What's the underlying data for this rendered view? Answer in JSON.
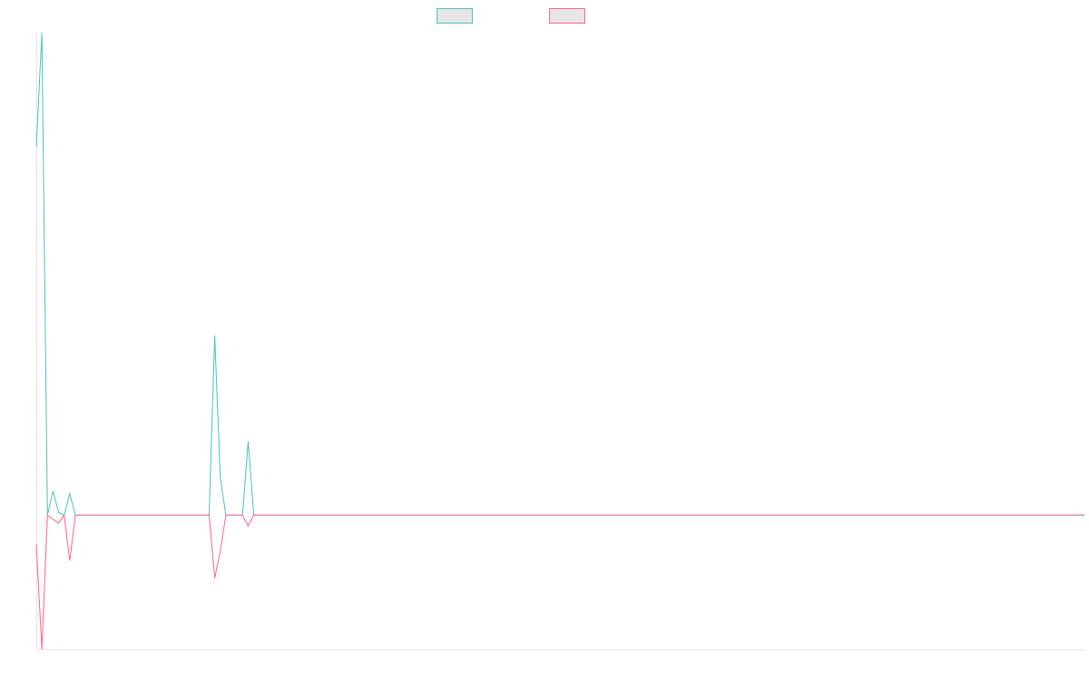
{
  "chart_data": {
    "type": "line",
    "series": [
      {
        "color": "#4bc0c0",
        "values": [
          2.75,
          3.6,
          0,
          0.18,
          0.02,
          0,
          0.16,
          0,
          0,
          0,
          0,
          0,
          0,
          0,
          0,
          0,
          0,
          0,
          0,
          0,
          0,
          0,
          0,
          0,
          0,
          0,
          0,
          0,
          0,
          0,
          0,
          0,
          1.34,
          0.28,
          0,
          0,
          0,
          0,
          0.55,
          0,
          0,
          0,
          0,
          0,
          0,
          0,
          0,
          0,
          0,
          0,
          0,
          0,
          0,
          0,
          0,
          0,
          0,
          0,
          0,
          0,
          0,
          0,
          0,
          0,
          0,
          0,
          0,
          0,
          0,
          0,
          0,
          0,
          0,
          0,
          0,
          0,
          0,
          0,
          0,
          0,
          0,
          0,
          0,
          0,
          0,
          0,
          0,
          0,
          0,
          0,
          0,
          0,
          0,
          0,
          0,
          0,
          0,
          0,
          0,
          0,
          0,
          0,
          0,
          0,
          0,
          0,
          0,
          0,
          0,
          0,
          0,
          0,
          0,
          0,
          0,
          0,
          0,
          0,
          0,
          0,
          0,
          0,
          0,
          0,
          0,
          0,
          0,
          0,
          0,
          0,
          0,
          0,
          0,
          0,
          0,
          0,
          0,
          0,
          0,
          0,
          0,
          0,
          0,
          0,
          0,
          0,
          0,
          0,
          0,
          0,
          0,
          0,
          0,
          0,
          0,
          0,
          0,
          0,
          0,
          0,
          0,
          0,
          0,
          0,
          0,
          0,
          0,
          0,
          0,
          0,
          0,
          0,
          0,
          0,
          0,
          0,
          0,
          0,
          0,
          0,
          0,
          0,
          0,
          0,
          0,
          0,
          0,
          0,
          0
        ]
      },
      {
        "color": "#ff6384",
        "values": [
          -0.22,
          -1,
          0,
          -0.03,
          -0.06,
          0,
          -0.34,
          0,
          0,
          0,
          0,
          0,
          0,
          0,
          0,
          0,
          0,
          0,
          0,
          0,
          0,
          0,
          0,
          0,
          0,
          0,
          0,
          0,
          0,
          0,
          0,
          0,
          -0.47,
          -0.27,
          0,
          0,
          0,
          0,
          -0.08,
          0,
          0,
          0,
          0,
          0,
          0,
          0,
          0,
          0,
          0,
          0,
          0,
          0,
          0,
          0,
          0,
          0,
          0,
          0,
          0,
          0,
          0,
          0,
          0,
          0,
          0,
          0,
          0,
          0,
          0,
          0,
          0,
          0,
          0,
          0,
          0,
          0,
          0,
          0,
          0,
          0,
          0,
          0,
          0,
          0,
          0,
          0,
          0,
          0,
          0,
          0,
          0,
          0,
          0,
          0,
          0,
          0,
          0,
          0,
          0,
          0,
          0,
          0,
          0,
          0,
          0,
          0,
          0,
          0,
          0,
          0,
          0,
          0,
          0,
          0,
          0,
          0,
          0,
          0,
          0,
          0,
          0,
          0,
          0,
          0,
          0,
          0,
          0,
          0,
          0,
          0,
          0,
          0,
          0,
          0,
          0,
          0,
          0,
          0,
          0,
          0,
          0,
          0,
          0,
          0,
          0,
          0,
          0,
          0,
          0,
          0,
          0,
          0,
          0,
          0,
          0,
          0,
          0,
          0,
          0,
          0,
          0,
          0,
          0,
          0,
          0,
          0,
          0,
          0,
          0,
          0,
          0,
          0,
          0,
          0,
          0,
          0,
          0,
          0,
          0,
          0,
          0,
          0,
          0,
          0,
          0,
          0,
          0,
          0,
          0
        ]
      }
    ],
    "ylim": [
      -1,
      3.6
    ]
  }
}
